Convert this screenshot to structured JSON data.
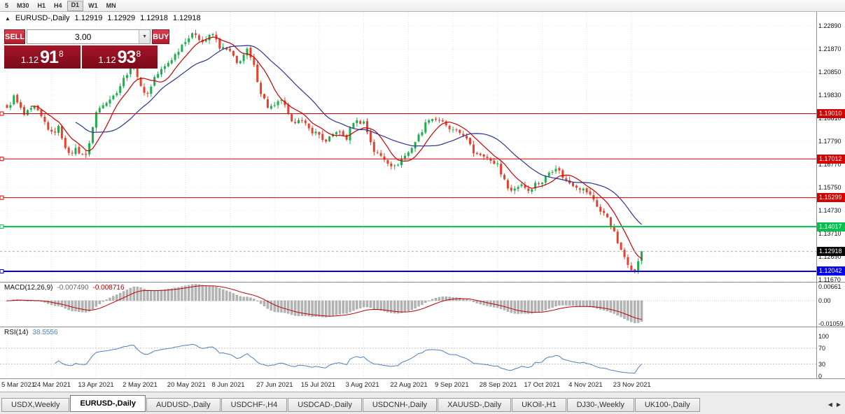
{
  "icons": {
    "panel_toggle": "▲",
    "dropdown": "▼",
    "tab_scroll_left": "◀",
    "tab_scroll_right": "▶"
  },
  "toolbar": {
    "timeframes": [
      "5",
      "M30",
      "H1",
      "H4",
      "D1",
      "W1",
      "MN"
    ],
    "active": "D1"
  },
  "chart_header": {
    "symbol": "EURUSD-,Daily",
    "open": "1.12919",
    "high": "1.12929",
    "low": "1.12918",
    "close": "1.12918"
  },
  "trade_widget": {
    "sell_label": "SELL",
    "buy_label": "BUY",
    "volume": "3.00",
    "sell_price": {
      "prefix": "1.12",
      "main": "91",
      "sup": "8"
    },
    "buy_price": {
      "prefix": "1.12",
      "main": "93",
      "sup": "8"
    }
  },
  "macd": {
    "name": "MACD(12,26,9)",
    "value1": "-0.007490",
    "value2": "-0.008716",
    "axis": [
      "0.00661",
      "0.00",
      "-0.01059"
    ]
  },
  "rsi": {
    "name": "RSI(14)",
    "value": "38.5556",
    "axis": [
      "100",
      "70",
      "30",
      "0"
    ],
    "levels": [
      70,
      30
    ]
  },
  "tabs": {
    "items": [
      "USDX,Weekly",
      "EURUSD-,Daily",
      "AUDUSD-,Daily",
      "USDCHF-,H4",
      "USDCAD-,Daily",
      "USDCNH-,Daily",
      "XAUUSD-,Daily",
      "UKOil-,H1",
      "DJ30-,Weekly",
      "UK100-,Daily"
    ],
    "active_index": 1
  },
  "chart_data": {
    "type": "candlestick",
    "title": "EURUSD-,Daily",
    "bars": 186,
    "label_every": 13,
    "x_labels": [
      "5 Mar 2021",
      "24 Mar 2021",
      "13 Apr 2021",
      "2 May 2021",
      "20 May 2021",
      "8 Jun 2021",
      "27 Jun 2021",
      "15 Jul 2021",
      "3 Aug 2021",
      "22 Aug 2021",
      "9 Sep 2021",
      "28 Sep 2021",
      "17 Oct 2021",
      "4 Nov 2021",
      "23 Nov 2021"
    ],
    "price_axis_ticks": [
      "1.22890",
      "1.21870",
      "1.20850",
      "1.19830",
      "1.18810",
      "1.17790",
      "1.16770",
      "1.15750",
      "1.14730",
      "1.13710",
      "1.12690",
      "1.11670"
    ],
    "ylim": [
      1.1135,
      1.231
    ],
    "last_close": 1.12918,
    "close_anchors": [
      [
        0,
        1.192
      ],
      [
        2,
        1.1975
      ],
      [
        5,
        1.1895
      ],
      [
        8,
        1.1928
      ],
      [
        11,
        1.1862
      ],
      [
        13,
        1.1812
      ],
      [
        15,
        1.184
      ],
      [
        18,
        1.1718
      ],
      [
        20,
        1.1745
      ],
      [
        23,
        1.1712
      ],
      [
        26,
        1.1905
      ],
      [
        28,
        1.1948
      ],
      [
        31,
        1.1978
      ],
      [
        33,
        1.2026
      ],
      [
        35,
        1.2082
      ],
      [
        37,
        1.212
      ],
      [
        39,
        1.2015
      ],
      [
        41,
        1.1988
      ],
      [
        43,
        1.2062
      ],
      [
        46,
        1.2108
      ],
      [
        49,
        1.2162
      ],
      [
        52,
        1.2228
      ],
      [
        55,
        1.2256
      ],
      [
        57,
        1.2218
      ],
      [
        60,
        1.2252
      ],
      [
        62,
        1.2196
      ],
      [
        65,
        1.2174
      ],
      [
        67,
        1.2122
      ],
      [
        70,
        1.218
      ],
      [
        72,
        1.2108
      ],
      [
        74,
        1.1996
      ],
      [
        76,
        1.1932
      ],
      [
        78,
        1.193
      ],
      [
        80,
        1.1966
      ],
      [
        83,
        1.1856
      ],
      [
        85,
        1.1882
      ],
      [
        88,
        1.1832
      ],
      [
        91,
        1.1808
      ],
      [
        93,
        1.1772
      ],
      [
        96,
        1.1826
      ],
      [
        99,
        1.1792
      ],
      [
        101,
        1.1868
      ],
      [
        104,
        1.1864
      ],
      [
        107,
        1.1736
      ],
      [
        110,
        1.1702
      ],
      [
        113,
        1.1664
      ],
      [
        115,
        1.1702
      ],
      [
        117,
        1.173
      ],
      [
        120,
        1.1802
      ],
      [
        123,
        1.1882
      ],
      [
        126,
        1.1876
      ],
      [
        128,
        1.1842
      ],
      [
        130,
        1.1824
      ],
      [
        133,
        1.1812
      ],
      [
        136,
        1.173
      ],
      [
        139,
        1.1722
      ],
      [
        141,
        1.1686
      ],
      [
        143,
        1.168
      ],
      [
        145,
        1.1602
      ],
      [
        147,
        1.156
      ],
      [
        150,
        1.1592
      ],
      [
        152,
        1.1562
      ],
      [
        154,
        1.1592
      ],
      [
        156,
        1.16
      ],
      [
        158,
        1.1642
      ],
      [
        160,
        1.1666
      ],
      [
        163,
        1.1602
      ],
      [
        166,
        1.1582
      ],
      [
        169,
        1.1556
      ],
      [
        171,
        1.1522
      ],
      [
        173,
        1.1468
      ],
      [
        175,
        1.1446
      ],
      [
        177,
        1.1372
      ],
      [
        179,
        1.1292
      ],
      [
        181,
        1.1242
      ],
      [
        183,
        1.1198
      ],
      [
        184,
        1.1252
      ],
      [
        185,
        1.12918
      ]
    ],
    "hlines": [
      {
        "value": 1.1901,
        "label": "1.19010",
        "color": "#d40000",
        "width": 1,
        "handle": true
      },
      {
        "value": 1.17012,
        "label": "1.17012",
        "color": "#d40000",
        "width": 1,
        "handle": true
      },
      {
        "value": 1.15299,
        "label": "1.15299",
        "color": "#d40000",
        "width": 1,
        "handle": true
      },
      {
        "value": 1.14017,
        "label": "1.14017",
        "color": "#00c14d",
        "width": 2,
        "handle": true
      },
      {
        "value": 1.12918,
        "label": "1.12918",
        "color": "#000000",
        "line": "#b0b0b0",
        "width": 1,
        "dash": "3,3"
      },
      {
        "value": 1.12042,
        "label": "1.12042",
        "color": "#0000ee",
        "width": 2,
        "handle": true
      }
    ],
    "ma": [
      {
        "period": 8,
        "color": "#cc0000"
      },
      {
        "period": 21,
        "color": "#283593"
      }
    ],
    "colors": {
      "up": "#1fae4e",
      "down": "#e8402d",
      "macd_hist": "#b4b4b4",
      "macd_signal": "#c00000",
      "rsi_line": "#4f81bd"
    }
  }
}
